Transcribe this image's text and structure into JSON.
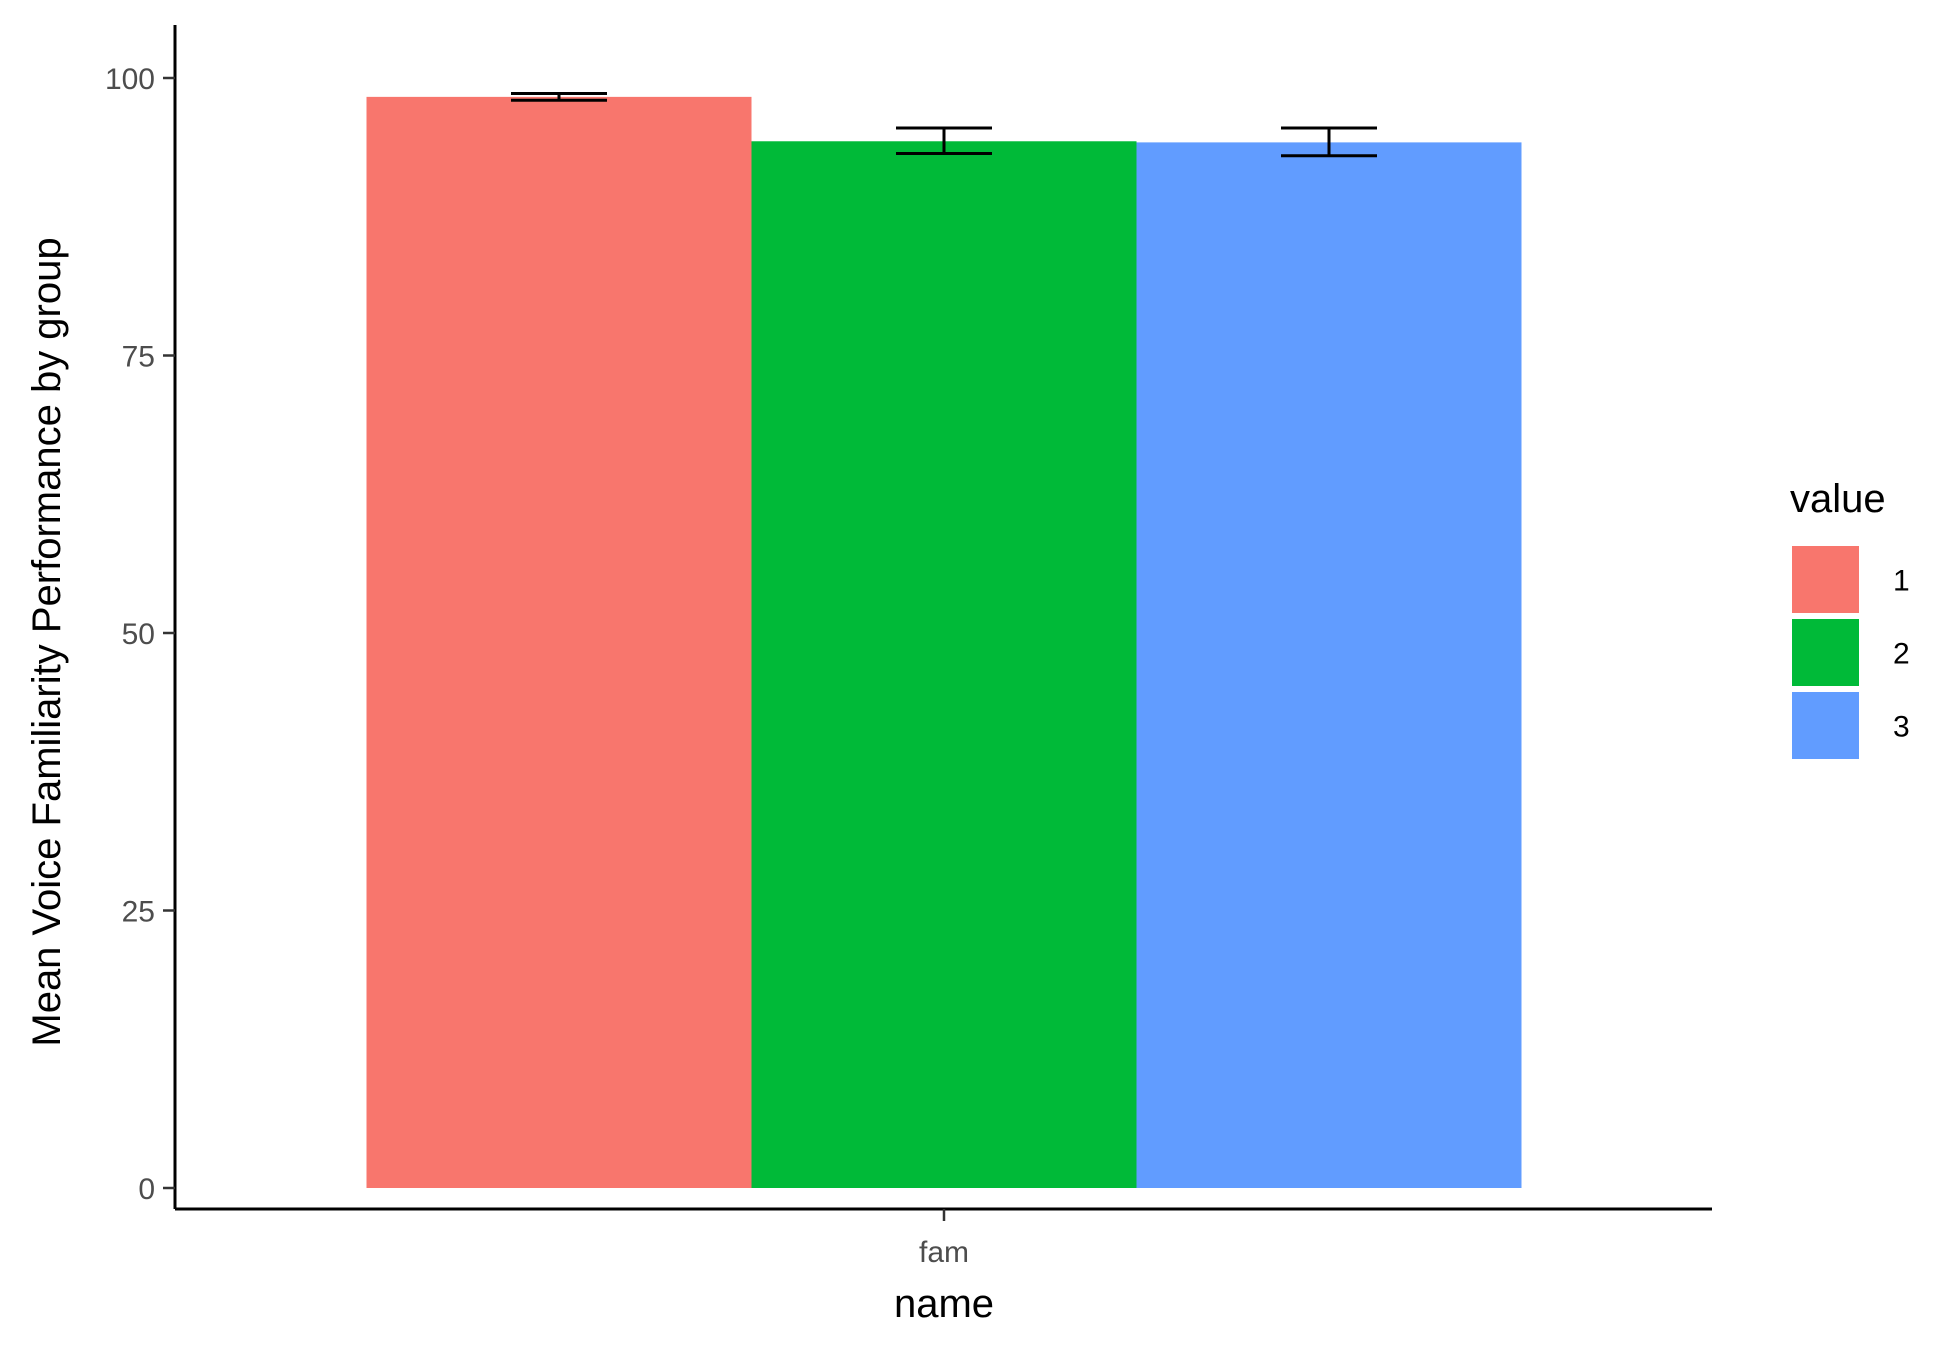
{
  "chart_data": {
    "type": "bar",
    "title": "",
    "xlabel": "name",
    "ylabel": "Mean Voice Familiarity Performance by group",
    "categories": [
      "fam"
    ],
    "ylim": [
      0,
      105
    ],
    "yticks": [
      0,
      25,
      50,
      75,
      100
    ],
    "legend": {
      "title": "value",
      "placement": "right"
    },
    "series": [
      {
        "name": "1",
        "color": "#F8766D",
        "values": [
          98.3
        ],
        "error_low": [
          98.0
        ],
        "error_high": [
          98.6
        ]
      },
      {
        "name": "2",
        "color": "#00BA38",
        "values": [
          94.3
        ],
        "error_low": [
          93.2
        ],
        "error_high": [
          95.5
        ]
      },
      {
        "name": "3",
        "color": "#619CFF",
        "values": [
          94.2
        ],
        "error_low": [
          93.0
        ],
        "error_high": [
          95.5
        ]
      }
    ],
    "grid": false
  }
}
